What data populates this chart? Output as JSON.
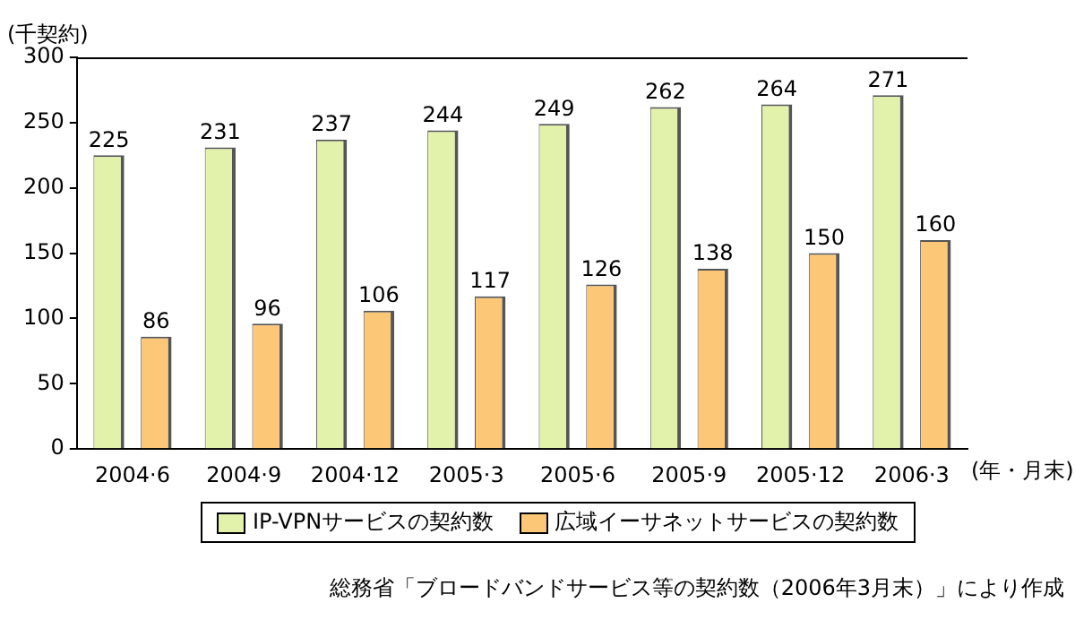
{
  "chart_data": {
    "type": "bar",
    "ylabel": "(千契約)",
    "xlabel": "(年・月末)",
    "categories": [
      "2004·6",
      "2004·9",
      "2004·12",
      "2005·3",
      "2005·6",
      "2005·9",
      "2005·12",
      "2006·3"
    ],
    "series": [
      {
        "name": "IP-VPNサービスの契約数",
        "color": "#e3f2ab",
        "values": [
          225,
          231,
          237,
          244,
          249,
          262,
          264,
          271
        ]
      },
      {
        "name": "広域イーサネットサービスの契約数",
        "color": "#fcc878",
        "values": [
          86,
          96,
          106,
          117,
          126,
          138,
          150,
          160
        ]
      }
    ],
    "ylim": [
      0,
      300
    ],
    "yticks": [
      0,
      50,
      100,
      150,
      200,
      250,
      300
    ],
    "grid": false,
    "legend": "bottom",
    "data_labels": true,
    "annotations": [
      "総務省「ブロードバンドサービス等の契約数（2006年3月末）」により作成"
    ]
  }
}
